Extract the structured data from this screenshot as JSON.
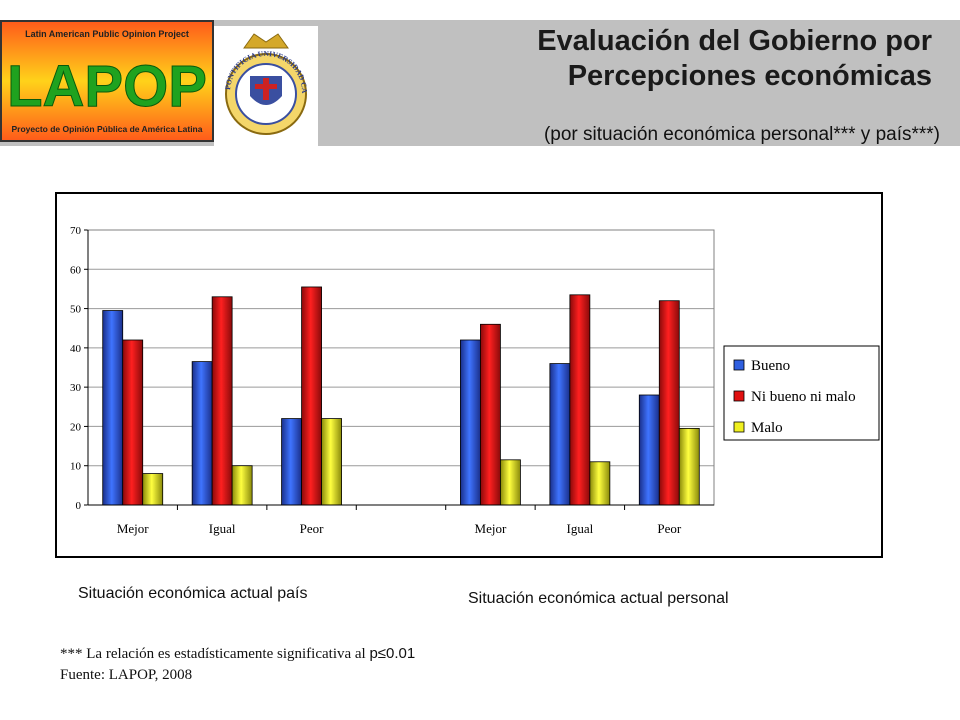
{
  "header": {
    "title_line1": "Evaluación del Gobierno por",
    "title_line2": "Percepciones económicas",
    "subtitle": "(por situación económica personal*** y país***)"
  },
  "logos": {
    "lapop_top": "Latin American Public Opinion Project",
    "lapop_main": "LAPOP",
    "lapop_bottom": "Proyecto de Opinión Pública de América Latina",
    "seal_text": "PONTIFICIA UNIVERSIDAD CATÓLICA DE CHILE"
  },
  "chart_data": {
    "type": "bar",
    "categories": [
      "Mejor",
      "Igual",
      "Peor",
      "",
      "Mejor",
      "Igual",
      "Peor"
    ],
    "series": [
      {
        "name": "Bueno",
        "color": "#2f5fe0",
        "values": [
          49.5,
          36.5,
          22,
          null,
          42,
          36,
          28
        ]
      },
      {
        "name": "Ni bueno ni malo",
        "color": "#e01010",
        "values": [
          42,
          53,
          55.5,
          null,
          46,
          53.5,
          52
        ]
      },
      {
        "name": "Malo",
        "color": "#f0f020",
        "values": [
          8,
          10,
          22,
          null,
          11.5,
          11,
          19.5
        ]
      }
    ],
    "ylim": [
      0,
      70
    ],
    "yticks": [
      "0",
      "10",
      "20",
      "30",
      "40",
      "50",
      "60",
      "70"
    ],
    "grid": true,
    "legend_position": "right",
    "group_labels": [
      "Situación económica actual país",
      "Situación económica actual personal"
    ]
  },
  "footnote": {
    "line1_prefix": "*** La relación es estadísticamente significativa al ",
    "line1_sig": "p≤0.01",
    "line2": "Fuente: LAPOP, 2008"
  }
}
